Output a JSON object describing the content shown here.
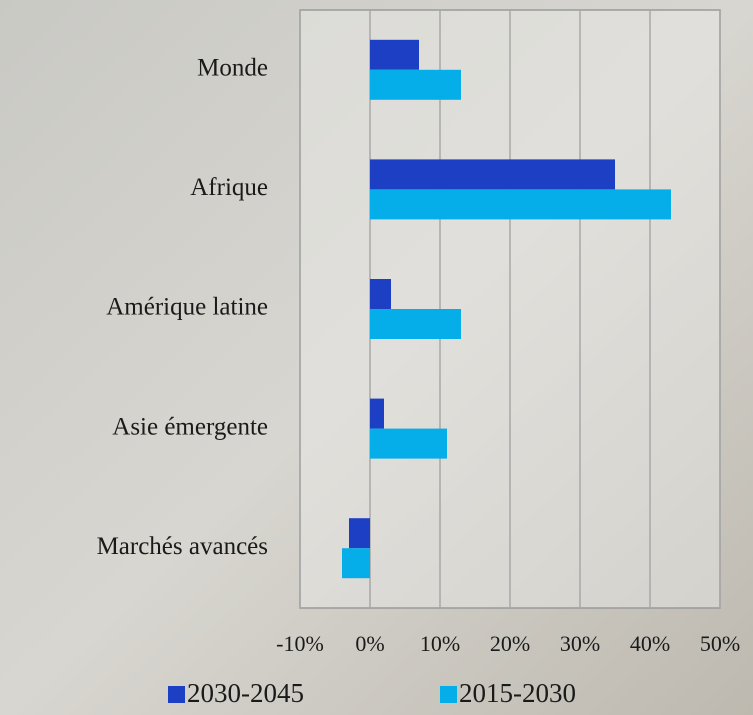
{
  "chart_data": {
    "type": "bar",
    "orientation": "horizontal",
    "categories": [
      "Monde",
      "Afrique",
      "Amérique latine",
      "Asie émergente",
      "Marchés avancés"
    ],
    "series": [
      {
        "name": "2030-2045",
        "color": "#1d3fc4",
        "values": [
          7,
          35,
          3,
          2,
          -3
        ]
      },
      {
        "name": "2015-2030",
        "color": "#05aee8",
        "values": [
          13,
          43,
          13,
          11,
          -4
        ]
      }
    ],
    "xlim": [
      -10,
      50
    ],
    "xticks": [
      {
        "value": -10,
        "label": "-10%"
      },
      {
        "value": 0,
        "label": "0%"
      },
      {
        "value": 10,
        "label": "10%"
      },
      {
        "value": 20,
        "label": "20%"
      },
      {
        "value": 30,
        "label": "30%"
      },
      {
        "value": 40,
        "label": "40%"
      },
      {
        "value": 50,
        "label": "50%"
      }
    ],
    "grid": true,
    "legend": "bottom"
  }
}
